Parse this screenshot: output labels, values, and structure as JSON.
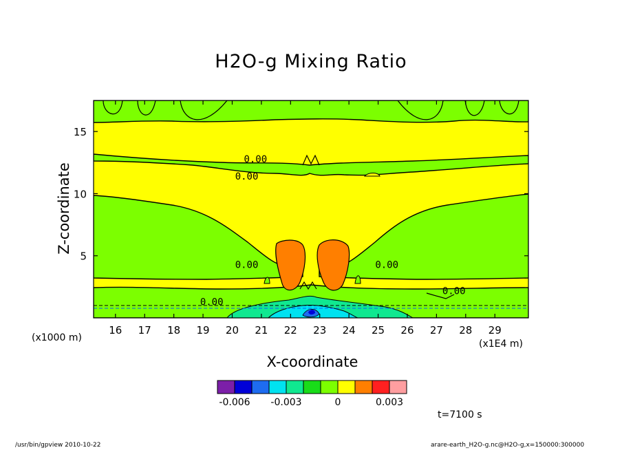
{
  "chart_data": {
    "type": "heatmap",
    "title": "H2O-g Mixing Ratio",
    "xlabel": "X-coordinate",
    "ylabel": "Z-coordinate",
    "x_unit": "(x1E4 m)",
    "y_unit": "(x1000 m)",
    "xlim": [
      15.25,
      30.15
    ],
    "ylim": [
      0,
      17.5
    ],
    "x_ticks": [
      16,
      17,
      18,
      19,
      20,
      21,
      22,
      23,
      24,
      25,
      26,
      27,
      28,
      29
    ],
    "y_ticks": [
      5,
      10,
      15
    ],
    "colorbar": {
      "colors": [
        "#7c1fa8",
        "#0000d8",
        "#1e6cf0",
        "#00e2f0",
        "#10e890",
        "#19dc19",
        "#7cff00",
        "#ffff00",
        "#ff7f00",
        "#ff2020",
        "#ff9ea0"
      ],
      "tick_labels": [
        "-0.006",
        "-0.003",
        "0",
        "0.003"
      ]
    },
    "contour_labels": [
      {
        "text": "0.00",
        "x": 20.4,
        "z": 12.8
      },
      {
        "text": "0.00",
        "x": 20.1,
        "z": 11.4
      },
      {
        "text": "0.00",
        "x": 20.1,
        "z": 4.3
      },
      {
        "text": "0.00",
        "x": 24.9,
        "z": 4.3
      },
      {
        "text": "0.00",
        "x": 27.2,
        "z": 2.2
      },
      {
        "text": "0.00",
        "x": 18.9,
        "z": 1.3
      }
    ],
    "annotation": "t=7100 s"
  },
  "footer": {
    "left": "/usr/bin/gpview   2010-10-22",
    "right": "arare-earth_H2O-g.nc@H2O-g,x=150000:300000"
  }
}
